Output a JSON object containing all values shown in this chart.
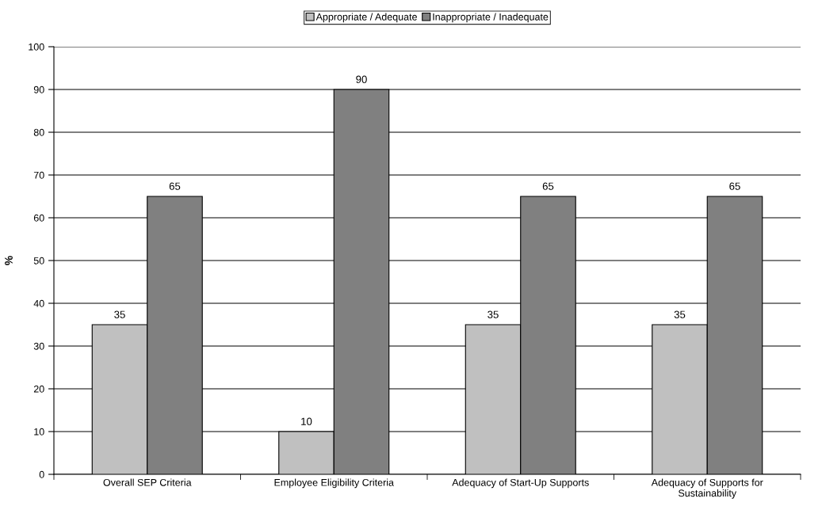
{
  "chart_data": {
    "type": "bar",
    "ylabel": "%",
    "categories": [
      "Overall SEP Criteria",
      "Employee Eligibility Criteria",
      "Adequacy of Start-Up Supports",
      "Adequacy of Supports for Sustainability"
    ],
    "series": [
      {
        "name": "Appropriate / Adequate",
        "color": "#c0c0c0",
        "values": [
          35,
          10,
          35,
          35
        ]
      },
      {
        "name": "Inappropriate / Inadequate",
        "color": "#808080",
        "values": [
          65,
          90,
          65,
          65
        ]
      }
    ],
    "ylim": [
      0,
      100
    ],
    "yticks": [
      0,
      10,
      20,
      30,
      40,
      50,
      60,
      70,
      80,
      90,
      100
    ],
    "grid": "y",
    "legend": "top",
    "data_labels": true
  }
}
